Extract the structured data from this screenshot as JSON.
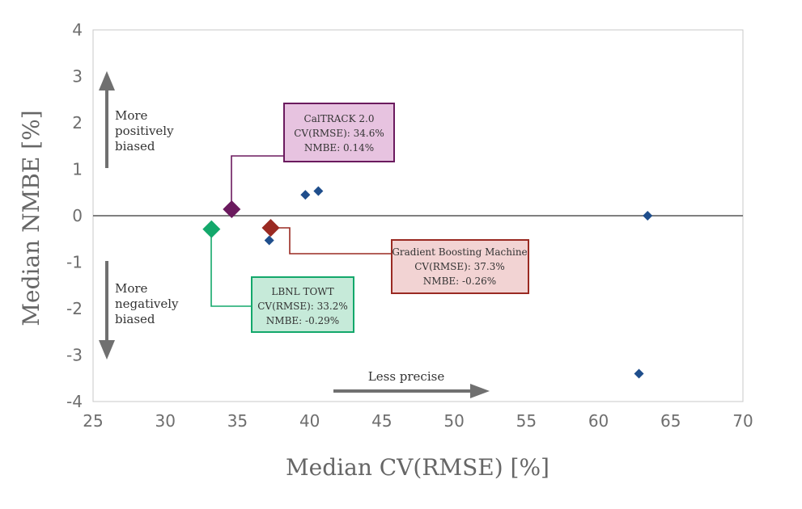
{
  "chart_data": {
    "type": "scatter",
    "title": "",
    "xlabel": "Median CV(RMSE) [%]",
    "ylabel": "Median NMBE [%]",
    "xlim": [
      25,
      70
    ],
    "ylim": [
      -4,
      4
    ],
    "xticks": [
      25,
      30,
      35,
      40,
      45,
      50,
      55,
      60,
      65,
      70
    ],
    "yticks": [
      4,
      3,
      2,
      1,
      0,
      -1,
      -2,
      -3,
      -4
    ],
    "grid": false,
    "zero_line": true,
    "series": [
      {
        "points": [
          {
            "x": 37.2,
            "y": -0.53
          },
          {
            "x": 39.7,
            "y": 0.45
          },
          {
            "x": 40.6,
            "y": 0.53
          },
          {
            "x": 63.4,
            "y": 0.0
          },
          {
            "x": 62.8,
            "y": -3.4
          }
        ],
        "color": "#1f4e8c"
      },
      {
        "points": [
          {
            "x": 34.6,
            "y": 0.14,
            "color": "#6b1a5e"
          },
          {
            "x": 37.3,
            "y": -0.26,
            "color": "#9a2a22"
          },
          {
            "x": 33.2,
            "y": -0.29,
            "color": "#13a86b"
          }
        ]
      }
    ],
    "annotations": [
      {
        "lines": [
          "CalTRACK 2.0",
          "CV(RMSE): 34.6%",
          "NMBE: 0.14%"
        ],
        "fill": "#e7c3e0",
        "stroke": "#6b1a5e"
      },
      {
        "lines": [
          "Gradient Boosting Machine",
          "CV(RMSE): 37.3%",
          "NMBE: -0.26%"
        ],
        "fill": "#f2d3d3",
        "stroke": "#9a2a22"
      },
      {
        "lines": [
          "LBNL TOWT",
          "CV(RMSE): 33.2%",
          "NMBE: -0.29%"
        ],
        "fill": "#c6ead9",
        "stroke": "#13a86b"
      }
    ],
    "notes": [
      {
        "lines": [
          "More",
          "positively",
          "biased"
        ]
      },
      {
        "lines": [
          "More",
          "negatively",
          "biased"
        ]
      },
      {
        "lines": [
          "Less precise"
        ]
      }
    ]
  }
}
